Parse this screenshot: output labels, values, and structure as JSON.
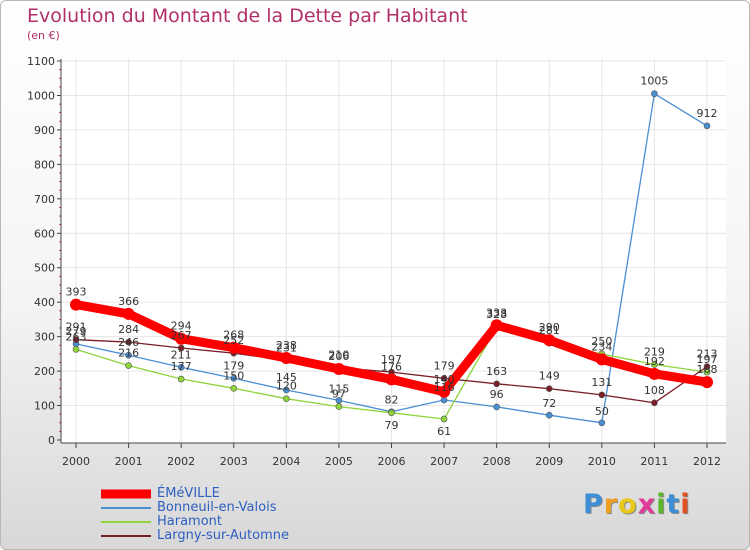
{
  "chart_data": {
    "type": "line",
    "title": "Evolution du Montant de la Dette par Habitant",
    "subtitle": "(en €)",
    "xlabel": "",
    "ylabel": "",
    "x": [
      "2000",
      "2001",
      "2002",
      "2003",
      "2004",
      "2005",
      "2006",
      "2007",
      "2008",
      "2009",
      "2010",
      "2011",
      "2012"
    ],
    "ylim": [
      0,
      1100
    ],
    "yticks": [
      "0",
      "100",
      "200",
      "300",
      "400",
      "500",
      "600",
      "700",
      "800",
      "900",
      "1000",
      "1100"
    ],
    "grid": true,
    "legend_position": "bottom-left",
    "series": [
      {
        "name": "ÉMéVILLE",
        "color": "#ff0000",
        "values": [
          393,
          366,
          294,
          268,
          238,
          206,
          176,
          140,
          333,
          290,
          234,
          192,
          168
        ]
      },
      {
        "name": "Bonneuil-en-Valois",
        "color": "#4a8fd4",
        "values": [
          279,
          246,
          211,
          179,
          145,
          115,
          82,
          116,
          96,
          72,
          50,
          1005,
          912
        ]
      },
      {
        "name": "Haramont",
        "color": "#8fd43a",
        "values": [
          263,
          216,
          177,
          150,
          120,
          97,
          79,
          61,
          328,
          281,
          250,
          219,
          197
        ]
      },
      {
        "name": "Largny-sur-Automne",
        "color": "#7a1f2a",
        "values": [
          291,
          284,
          267,
          252,
          231,
          210,
          197,
          179,
          163,
          149,
          131,
          108,
          213
        ]
      }
    ]
  },
  "logo": {
    "letters": [
      "P",
      "r",
      "o",
      "x",
      "i",
      "t",
      "i"
    ],
    "colors": [
      "#3d8fd8",
      "#f0a020",
      "#e8c818",
      "#e03a9a",
      "#58b828",
      "#3d8fd8",
      "#e05020"
    ]
  }
}
